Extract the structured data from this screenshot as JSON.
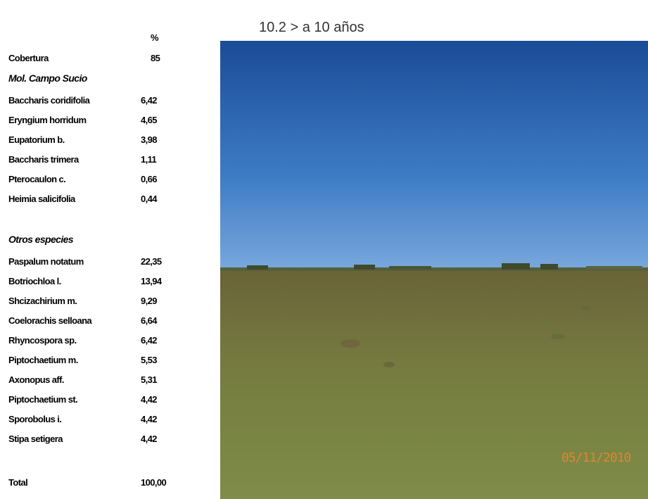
{
  "title": "10.2 > a 10 años",
  "table": {
    "header": "%",
    "cover": {
      "label": "Cobertura",
      "value": "85"
    },
    "sections": [
      {
        "title": "Mol. Campo Sucio",
        "rows": [
          [
            "Baccharis coridifolia",
            "6,42"
          ],
          [
            "Eryngium horridum",
            "4,65"
          ],
          [
            "Eupatorium b.",
            "3,98"
          ],
          [
            "Baccharis trimera",
            "1,11"
          ],
          [
            "Pterocaulon c.",
            "0,66"
          ],
          [
            "Heimia salicifolia",
            "0,44"
          ]
        ]
      },
      {
        "title": "Otros especies",
        "rows": [
          [
            "Paspalum notatum",
            "22,35"
          ],
          [
            "Botriochloa l.",
            "13,94"
          ],
          [
            "Shcizachirium m.",
            "9,29"
          ],
          [
            "Coelorachis selloana",
            "6,64"
          ],
          [
            "Rhyncospora sp.",
            "6,42"
          ],
          [
            "Piptochaetium m.",
            "5,53"
          ],
          [
            "Axonopus aff.",
            "5,31"
          ],
          [
            "Piptochaetium st.",
            "4,42"
          ],
          [
            "Sporobolus i.",
            "4,42"
          ],
          [
            "Stipa setigera",
            "4,42"
          ]
        ]
      }
    ],
    "total": {
      "label": "Total",
      "value": "100,00"
    }
  },
  "photo": {
    "date_stamp": "05/11/2010"
  }
}
